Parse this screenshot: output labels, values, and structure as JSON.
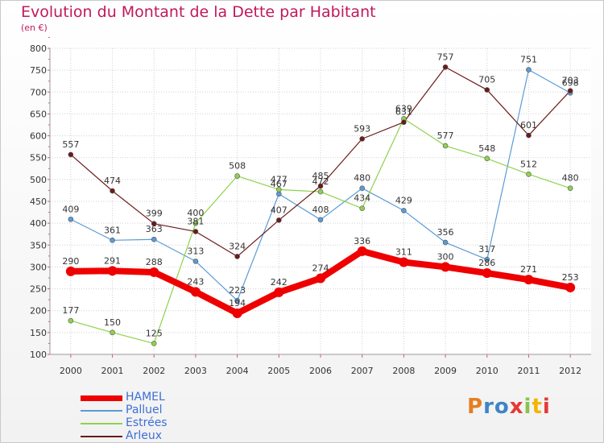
{
  "title": "Evolution du Montant de la Dette par Habitant",
  "subtitle": "(en €)",
  "logo": "Proxiti",
  "chart_data": {
    "type": "line",
    "title": "Evolution du Montant de la Dette par Habitant",
    "subtitle": "(en €)",
    "categories": [
      "2000",
      "2001",
      "2002",
      "2003",
      "2004",
      "2005",
      "2006",
      "2007",
      "2008",
      "2009",
      "2010",
      "2011",
      "2012"
    ],
    "ylim": [
      100,
      800
    ],
    "yticks": [
      100,
      150,
      200,
      250,
      300,
      350,
      400,
      450,
      500,
      550,
      600,
      650,
      700,
      750,
      800
    ],
    "grid": true,
    "legend_position": "bottom-left",
    "series": [
      {
        "name": "HAMEL",
        "color": "#ee0000",
        "values": [
          290,
          291,
          288,
          243,
          194,
          242,
          274,
          336,
          311,
          300,
          286,
          271,
          253
        ]
      },
      {
        "name": "Palluel",
        "color": "#5b9bd5",
        "values": [
          409,
          361,
          363,
          313,
          223,
          467,
          408,
          480,
          429,
          356,
          317,
          751,
          698
        ]
      },
      {
        "name": "Estrées",
        "color": "#8fd14f",
        "values": [
          177,
          150,
          125,
          400,
          508,
          477,
          472,
          434,
          639,
          577,
          548,
          512,
          480
        ]
      },
      {
        "name": "Arleux",
        "color": "#6b1a1a",
        "values": [
          557,
          474,
          399,
          381,
          324,
          407,
          485,
          593,
          631,
          757,
          705,
          601,
          703
        ]
      }
    ]
  }
}
